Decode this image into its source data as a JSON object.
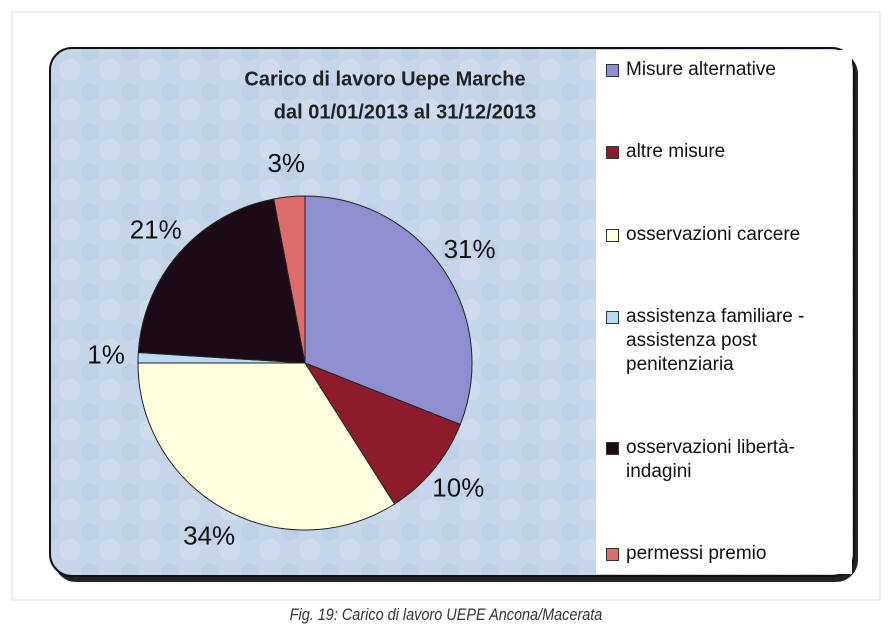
{
  "chart_data": {
    "type": "pie",
    "title": "Carico di lavoro Uepe Marche",
    "subtitle": "dal 01/01/2013 al 31/12/2013",
    "categories": [
      "Misure alternative",
      "altre misure",
      "osservazioni carcere",
      "assistenza familiare - assistenza post penitenziaria",
      "osservazioni libertà- indagini",
      "permessi premio"
    ],
    "values": [
      31,
      10,
      34,
      1,
      21,
      3
    ],
    "value_labels": [
      "31%",
      "10%",
      "34%",
      "1%",
      "21%",
      "3%"
    ],
    "colors": [
      "#8f8fcf",
      "#8e1b2c",
      "#ffffe0",
      "#b9dcf3",
      "#1c0b16",
      "#e06b6b"
    ],
    "legend": "right"
  },
  "caption": "Fig. 19: Carico di lavoro UEPE Ancona/Macerata"
}
